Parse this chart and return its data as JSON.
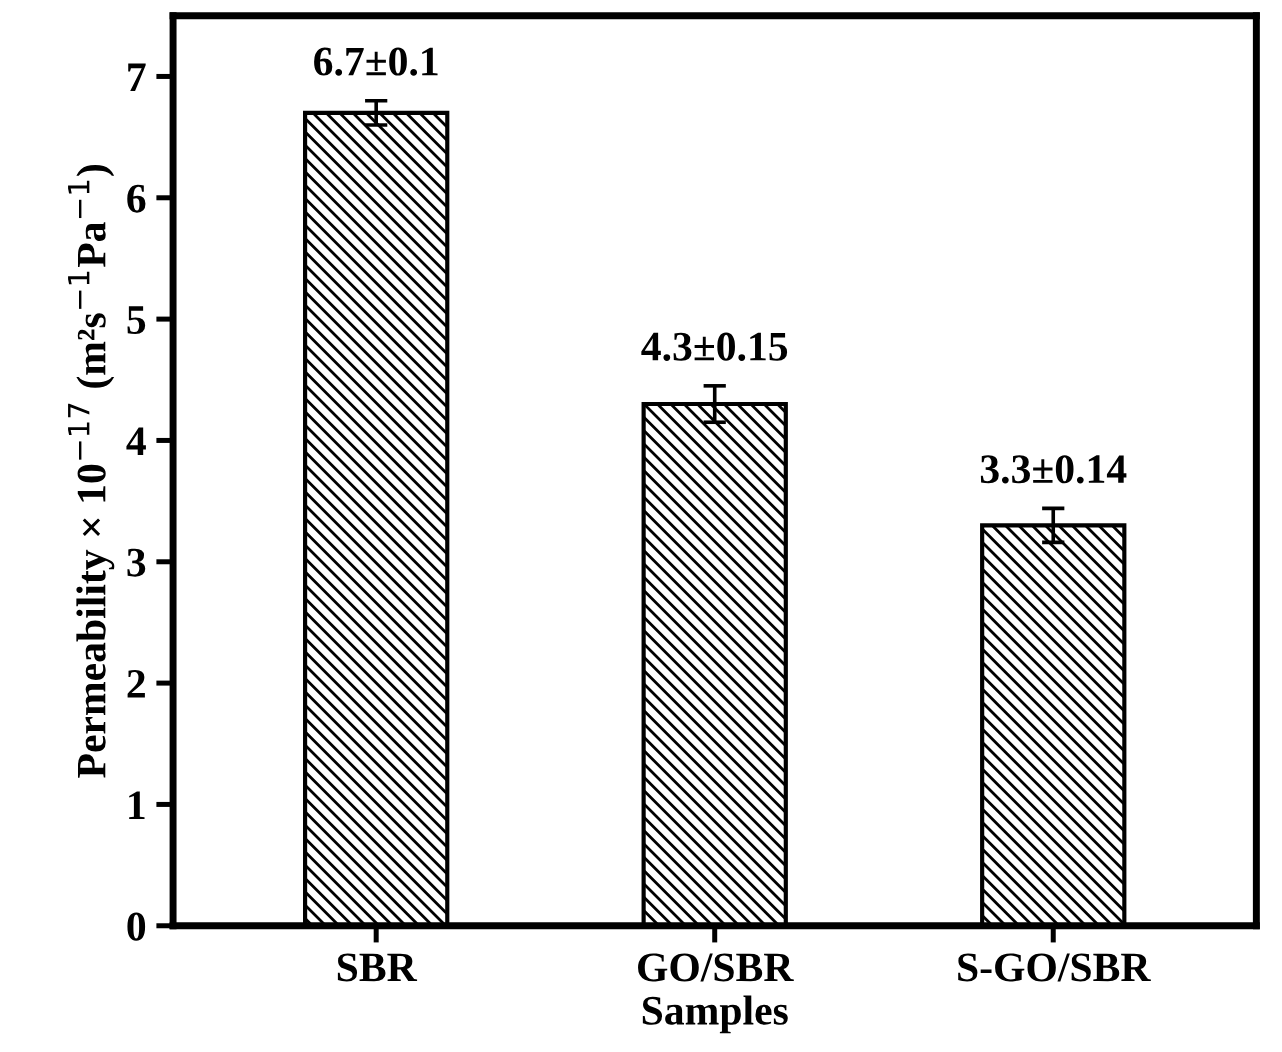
{
  "chart_data": {
    "type": "bar",
    "xlabel": "Samples",
    "ylabel": "Permeability × 10$^{−17}$ (m²s$^{−1}$Pa$^{−1}$)",
    "categories": [
      "SBR",
      "GO/SBR",
      "S-GO/SBR"
    ],
    "values": [
      6.7,
      4.3,
      3.3
    ],
    "errors": [
      0.1,
      0.15,
      0.14
    ],
    "value_labels": [
      "6.7±0.1",
      "4.3±0.15",
      "3.3±0.14"
    ],
    "color": "#000000",
    "ylim": [
      0,
      7.5
    ],
    "yticks": [
      0,
      1,
      2,
      3,
      4,
      5,
      6,
      7
    ],
    "grid": false
  }
}
